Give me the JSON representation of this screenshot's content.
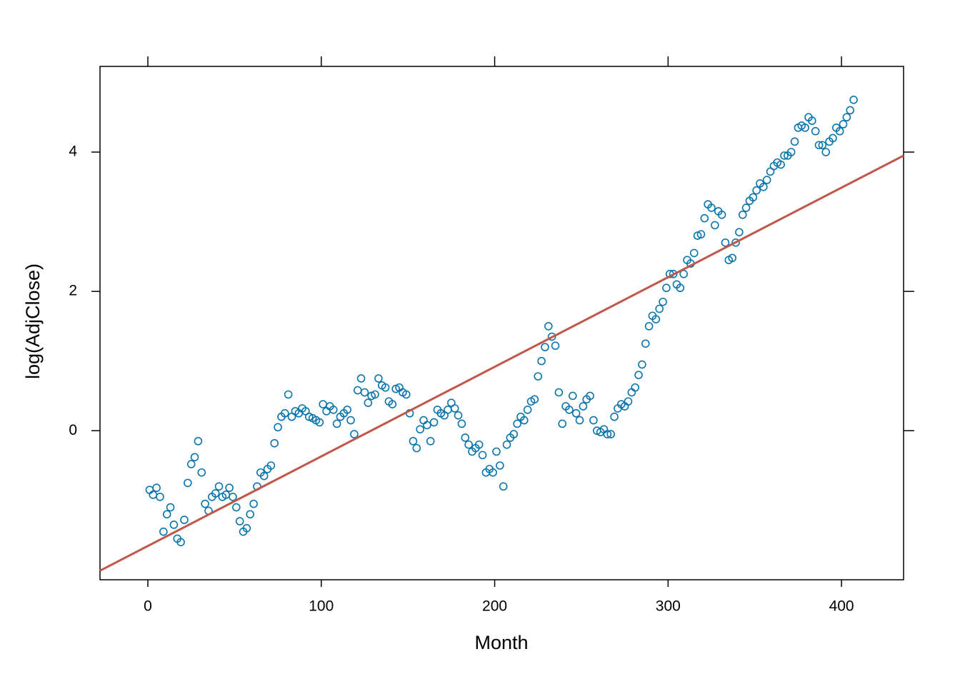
{
  "chart_data": {
    "type": "scatter",
    "x_label": "Month",
    "y_label": "log(AdjClose)",
    "xlim": [
      -27.6,
      435.8
    ],
    "ylim": [
      -2.14,
      5.23
    ],
    "xticks": [
      0,
      100,
      200,
      300,
      400
    ],
    "yticks": [
      0,
      2,
      4
    ],
    "series": [
      {
        "color": "#0a75ad",
        "x": [
          1,
          3,
          5,
          7,
          9,
          11,
          13,
          15,
          17,
          19,
          21,
          23,
          25,
          27,
          29,
          31,
          33,
          35,
          37,
          39,
          41,
          43,
          45,
          47,
          49,
          51,
          53,
          55,
          57,
          59,
          61,
          63,
          65,
          67,
          69,
          71,
          73,
          75,
          77,
          79,
          81,
          83,
          85,
          87,
          89,
          91,
          93,
          95,
          97,
          99,
          101,
          103,
          105,
          107,
          109,
          111,
          113,
          115,
          117,
          119,
          121,
          123,
          125,
          127,
          129,
          131,
          133,
          135,
          137,
          139,
          141,
          143,
          145,
          147,
          149,
          151,
          153,
          155,
          157,
          159,
          161,
          163,
          165,
          167,
          169,
          171,
          173,
          175,
          177,
          179,
          181,
          183,
          185,
          187,
          189,
          191,
          193,
          195,
          197,
          199,
          201,
          203,
          205,
          207,
          209,
          211,
          213,
          215,
          217,
          219,
          221,
          223,
          225,
          227,
          229,
          231,
          233,
          235,
          237,
          239,
          241,
          243,
          245,
          247,
          249,
          251,
          253,
          255,
          257,
          259,
          261,
          263,
          265,
          267,
          269,
          271,
          273,
          275,
          277,
          279,
          281,
          283,
          285,
          287,
          289,
          291,
          293,
          295,
          297,
          299,
          301,
          303,
          305,
          307,
          309,
          311,
          313,
          315,
          317,
          319,
          321,
          323,
          325,
          327,
          329,
          331,
          333,
          335,
          337,
          339,
          341,
          343,
          345,
          347,
          349,
          351,
          353,
          355,
          357,
          359,
          361,
          363,
          365,
          367,
          369,
          371,
          373,
          375,
          377,
          379,
          381,
          383,
          385,
          387,
          389,
          391,
          393,
          395,
          397,
          399,
          401,
          403,
          405,
          407
        ],
        "values": [
          -0.85,
          -0.92,
          -0.82,
          -0.95,
          -1.45,
          -1.2,
          -1.1,
          -1.35,
          -1.55,
          -1.6,
          -1.28,
          -0.75,
          -0.48,
          -0.38,
          -0.15,
          -0.6,
          -1.05,
          -1.15,
          -0.95,
          -0.9,
          -0.8,
          -0.95,
          -0.92,
          -0.82,
          -0.95,
          -1.1,
          -1.3,
          -1.45,
          -1.4,
          -1.2,
          -1.05,
          -0.8,
          -0.6,
          -0.65,
          -0.55,
          -0.5,
          -0.18,
          0.05,
          0.2,
          0.25,
          0.52,
          0.2,
          0.28,
          0.25,
          0.32,
          0.28,
          0.2,
          0.18,
          0.15,
          0.12,
          0.38,
          0.28,
          0.35,
          0.3,
          0.1,
          0.2,
          0.25,
          0.3,
          0.15,
          -0.05,
          0.58,
          0.75,
          0.55,
          0.4,
          0.5,
          0.52,
          0.75,
          0.65,
          0.62,
          0.42,
          0.38,
          0.6,
          0.62,
          0.55,
          0.52,
          0.25,
          -0.15,
          -0.25,
          0.02,
          0.15,
          0.08,
          -0.15,
          0.12,
          0.3,
          0.25,
          0.22,
          0.3,
          0.4,
          0.32,
          0.22,
          0.1,
          -0.1,
          -0.2,
          -0.3,
          -0.25,
          -0.2,
          -0.35,
          -0.6,
          -0.55,
          -0.6,
          -0.3,
          -0.5,
          -0.8,
          -0.2,
          -0.1,
          -0.05,
          0.1,
          0.2,
          0.15,
          0.3,
          0.42,
          0.45,
          0.78,
          1.0,
          1.2,
          1.5,
          1.35,
          1.22,
          0.55,
          0.1,
          0.35,
          0.3,
          0.5,
          0.25,
          0.15,
          0.35,
          0.45,
          0.5,
          0.15,
          0.0,
          -0.02,
          0.02,
          -0.05,
          -0.05,
          0.2,
          0.32,
          0.38,
          0.35,
          0.42,
          0.55,
          0.62,
          0.8,
          0.95,
          1.25,
          1.5,
          1.65,
          1.6,
          1.75,
          1.85,
          2.05,
          2.25,
          2.25,
          2.1,
          2.05,
          2.25,
          2.45,
          2.4,
          2.55,
          2.8,
          2.82,
          3.05,
          3.25,
          3.2,
          2.95,
          3.15,
          3.1,
          2.7,
          2.45,
          2.48,
          2.7,
          2.85,
          3.1,
          3.2,
          3.3,
          3.35,
          3.45,
          3.55,
          3.5,
          3.6,
          3.72,
          3.8,
          3.85,
          3.82,
          3.95,
          3.95,
          4.0,
          4.15,
          4.35,
          4.38,
          4.35,
          4.5,
          4.45,
          4.3,
          4.1,
          4.1,
          4.0,
          4.15,
          4.2,
          4.35,
          4.3,
          4.4,
          4.5,
          4.6,
          4.75
        ]
      }
    ],
    "regression": {
      "intercept": -1.655,
      "slope": 0.01286,
      "color": "#c0574a"
    }
  }
}
